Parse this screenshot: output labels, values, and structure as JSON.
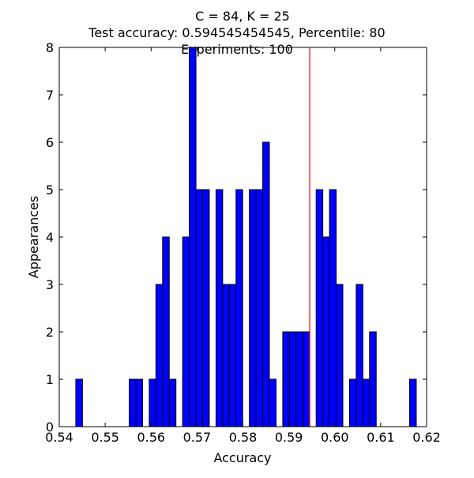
{
  "chart_data": {
    "type": "bar",
    "title_lines": [
      "C = 84, K = 25",
      "Test accuracy: 0.594545454545, Percentile: 80",
      "Experiments: 100"
    ],
    "xlabel": "Accuracy",
    "ylabel": "Appearances",
    "xlim": [
      0.54,
      0.62
    ],
    "ylim": [
      0,
      8
    ],
    "xticks": [
      {
        "value": 0.54,
        "label": "0.54"
      },
      {
        "value": 0.55,
        "label": "0.55"
      },
      {
        "value": 0.56,
        "label": "0.56"
      },
      {
        "value": 0.57,
        "label": "0.57"
      },
      {
        "value": 0.58,
        "label": "0.58"
      },
      {
        "value": 0.59,
        "label": "0.59"
      },
      {
        "value": 0.6,
        "label": "0.60"
      },
      {
        "value": 0.61,
        "label": "0.61"
      },
      {
        "value": 0.62,
        "label": "0.62"
      }
    ],
    "yticks": [
      {
        "value": 0,
        "label": "0"
      },
      {
        "value": 1,
        "label": "1"
      },
      {
        "value": 2,
        "label": "2"
      },
      {
        "value": 3,
        "label": "3"
      },
      {
        "value": 4,
        "label": "4"
      },
      {
        "value": 5,
        "label": "5"
      },
      {
        "value": 6,
        "label": "6"
      },
      {
        "value": 7,
        "label": "7"
      },
      {
        "value": 8,
        "label": "8"
      }
    ],
    "bin_start": 0.5436,
    "bin_width": 0.001454,
    "counts": [
      1,
      0,
      0,
      0,
      0,
      0,
      0,
      0,
      1,
      1,
      0,
      1,
      3,
      4,
      1,
      0,
      4,
      8,
      5,
      5,
      0,
      5,
      3,
      3,
      5,
      0,
      5,
      5,
      6,
      1,
      0,
      2,
      2,
      2,
      2,
      0,
      5,
      4,
      5,
      3,
      0,
      1,
      3,
      1,
      2,
      0,
      0,
      0,
      0,
      0,
      1
    ],
    "grid": false,
    "reference_line": {
      "x": 0.594545454545,
      "color": "#ff0000"
    },
    "bar_color": "#0000ff",
    "bar_edge_color": "#000000"
  }
}
